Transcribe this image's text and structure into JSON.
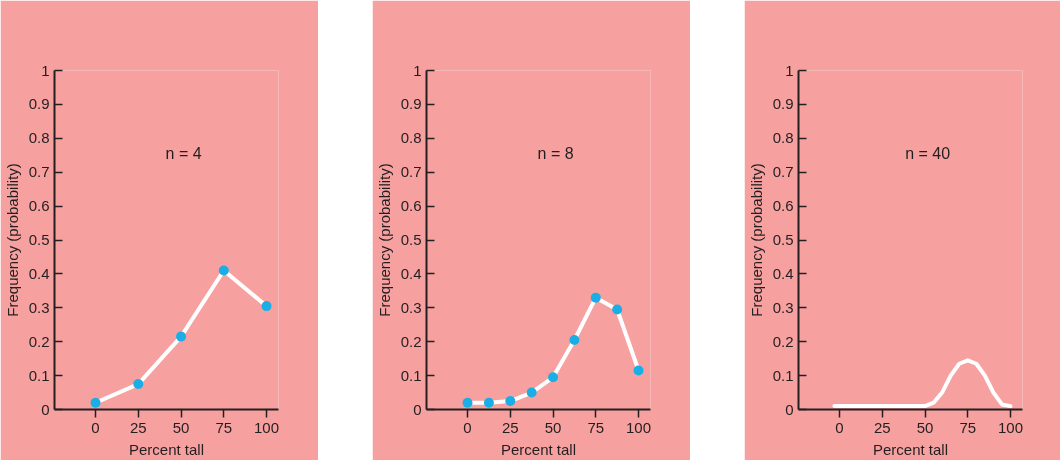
{
  "chart_data": [
    {
      "type": "line",
      "xlabel": "Percent tall",
      "ylabel": "Frequency (probability)",
      "annotations": [
        "n = 4"
      ],
      "x": [
        0,
        25,
        50,
        75,
        100
      ],
      "series": [
        {
          "color": "#ffffff",
          "values": [
            0.02,
            0.075,
            0.215,
            0.41,
            0.305
          ]
        }
      ],
      "marker": "circle",
      "xlim": [
        -24,
        107
      ],
      "ylim": [
        0,
        1
      ],
      "xticks": [
        0,
        25,
        50,
        75,
        100
      ],
      "yticks": [
        0,
        0.1,
        0.2,
        0.3,
        0.4,
        0.5,
        0.6,
        0.7,
        0.8,
        0.9,
        1
      ],
      "grid": false
    },
    {
      "type": "line",
      "xlabel": "Percent tall",
      "ylabel": "Frequency (probability)",
      "annotations": [
        "n = 8"
      ],
      "x": [
        0,
        12.5,
        25,
        37.5,
        50,
        62.5,
        75,
        87.5,
        100
      ],
      "series": [
        {
          "color": "#ffffff",
          "values": [
            0.02,
            0.02,
            0.025,
            0.05,
            0.095,
            0.205,
            0.33,
            0.295,
            0.115
          ]
        }
      ],
      "marker": "circle",
      "xlim": [
        -24,
        107
      ],
      "ylim": [
        0,
        1
      ],
      "xticks": [
        0,
        25,
        50,
        75,
        100
      ],
      "yticks": [
        0,
        0.1,
        0.2,
        0.3,
        0.4,
        0.5,
        0.6,
        0.7,
        0.8,
        0.9,
        1
      ],
      "grid": false
    },
    {
      "type": "line",
      "xlabel": "Percent tall",
      "ylabel": "Frequency (probability)",
      "annotations": [
        "n = 40"
      ],
      "x": [
        -3,
        50,
        55,
        60,
        65,
        70,
        75,
        80,
        85,
        90,
        95,
        100
      ],
      "series": [
        {
          "color": "#ffffff",
          "values": [
            0.01,
            0.01,
            0.02,
            0.05,
            0.1,
            0.135,
            0.145,
            0.135,
            0.1,
            0.05,
            0.015,
            0.01
          ]
        }
      ],
      "marker": "none",
      "xlim": [
        -24,
        107
      ],
      "ylim": [
        0,
        1
      ],
      "xticks": [
        0,
        25,
        50,
        75,
        100
      ],
      "yticks": [
        0,
        0.1,
        0.2,
        0.3,
        0.4,
        0.5,
        0.6,
        0.7,
        0.8,
        0.9,
        1
      ],
      "grid": false
    }
  ]
}
